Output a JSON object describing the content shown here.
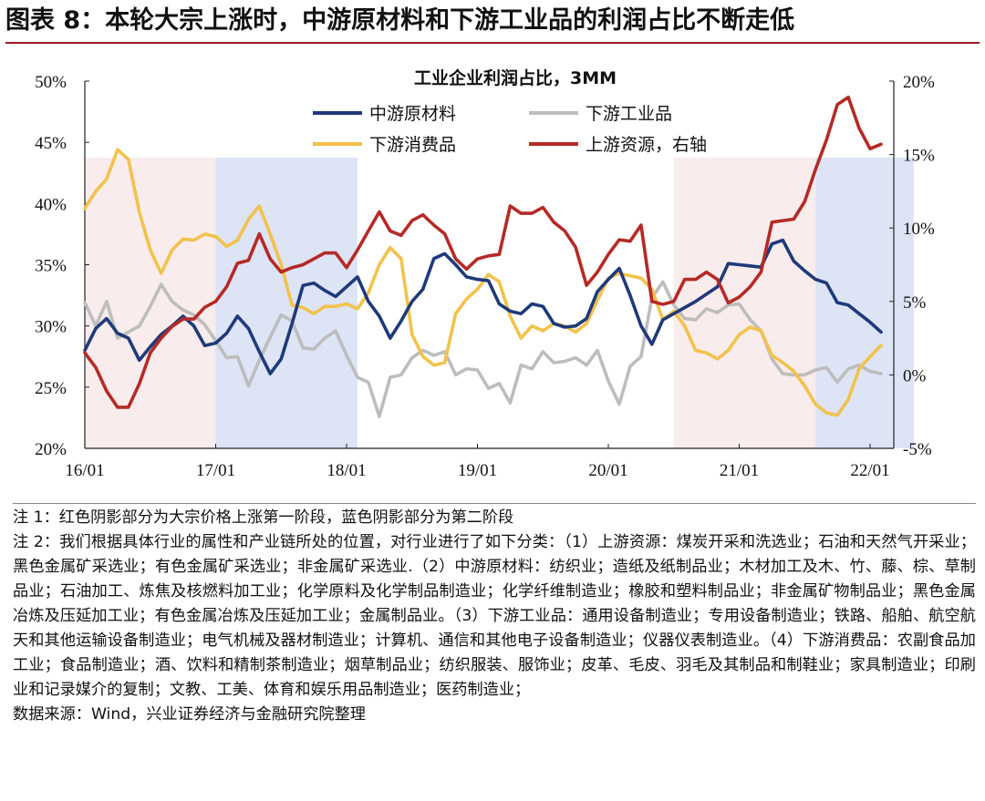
{
  "figure_title": "图表 8：本轮大宗上涨时，中游原材料和下游工业品的利润占比不断走低",
  "chart_data": {
    "type": "line",
    "title": "工业企业利润占比，3MM",
    "x_labels": [
      "16/01",
      "17/01",
      "18/01",
      "19/01",
      "20/01",
      "21/01",
      "22/01"
    ],
    "y_left": {
      "ticks": [
        "20%",
        "25%",
        "30%",
        "35%",
        "40%",
        "45%",
        "50%"
      ],
      "range": [
        20,
        50
      ]
    },
    "y_right": {
      "ticks": [
        "-5%",
        "0%",
        "5%",
        "10%",
        "15%",
        "20%"
      ],
      "range": [
        -5,
        20
      ]
    },
    "shaded_periods": [
      {
        "from_month": 0,
        "to_month": 12,
        "color": "#f8ecec"
      },
      {
        "from_month": 12,
        "to_month": 25,
        "color": "#dde4f6"
      },
      {
        "from_month": 54,
        "to_month": 67,
        "color": "#f8ecec"
      },
      {
        "from_month": 67,
        "to_month": 76,
        "color": "#dde4f6"
      }
    ],
    "series": [
      {
        "name": "中游原材料",
        "axis": "left",
        "color": "#1f3a7a",
        "values": [
          28.0,
          29.8,
          30.6,
          29.4,
          29.0,
          27.2,
          28.3,
          29.3,
          30.0,
          30.8,
          30.0,
          28.4,
          28.6,
          29.4,
          30.8,
          29.8,
          27.9,
          26.1,
          27.3,
          30.2,
          33.3,
          33.5,
          32.9,
          32.4,
          33.2,
          34.0,
          32.0,
          30.8,
          29.0,
          30.4,
          32.0,
          33.0,
          35.5,
          35.9,
          35.0,
          34.0,
          33.8,
          33.7,
          31.8,
          31.2,
          31.0,
          31.8,
          31.6,
          30.2,
          29.9,
          30.0,
          30.6,
          32.8,
          33.8,
          34.7,
          32.5,
          30.0,
          28.5,
          30.5,
          31.0,
          31.5,
          32.0,
          32.6,
          33.2,
          35.1,
          35.0,
          34.9,
          34.8,
          36.7,
          37.0,
          35.3,
          34.5,
          33.8,
          33.5,
          31.9,
          31.7,
          31.0,
          30.3,
          29.5
        ],
        "label": "中游原材料"
      },
      {
        "name": "下游工业品",
        "axis": "left",
        "color": "#bdbdbd",
        "values": [
          31.9,
          30.0,
          32.0,
          29.0,
          29.5,
          30.0,
          31.6,
          33.4,
          32.0,
          31.3,
          30.9,
          30.1,
          28.8,
          27.4,
          27.5,
          25.1,
          27.2,
          29.1,
          30.9,
          30.4,
          28.2,
          28.1,
          29.0,
          29.6,
          27.6,
          25.8,
          25.4,
          22.6,
          25.8,
          26.0,
          27.4,
          28.0,
          27.6,
          27.9,
          26.0,
          26.5,
          26.4,
          24.9,
          25.3,
          23.7,
          26.8,
          26.5,
          27.9,
          27.0,
          27.1,
          27.4,
          26.8,
          28.0,
          25.5,
          23.6,
          26.7,
          27.5,
          32.3,
          33.6,
          31.7,
          30.6,
          30.5,
          31.4,
          31.1,
          31.7,
          31.8,
          30.5,
          29.6,
          27.3,
          26.1,
          26.0,
          26.0,
          26.4,
          26.6,
          25.4,
          26.5,
          26.8,
          26.3,
          26.1
        ],
        "label": "下游工业品"
      },
      {
        "name": "下游消费品",
        "axis": "left",
        "color": "#f2c24c",
        "values": [
          39.6,
          41.0,
          42.0,
          44.4,
          43.6,
          39.3,
          36.2,
          34.3,
          36.2,
          37.1,
          37.0,
          37.5,
          37.3,
          36.5,
          37.0,
          38.7,
          39.8,
          37.5,
          35.0,
          31.7,
          31.5,
          31.0,
          31.6,
          31.6,
          31.8,
          31.4,
          32.7,
          35.0,
          36.4,
          35.5,
          29.3,
          27.5,
          26.8,
          27.0,
          31.0,
          32.2,
          33.0,
          34.2,
          33.6,
          30.8,
          29.0,
          30.0,
          29.6,
          30.2,
          30.0,
          29.5,
          30.2,
          32.1,
          33.9,
          34.3,
          34.1,
          33.9,
          33.0,
          30.5,
          31.2,
          30.0,
          28.0,
          27.8,
          27.3,
          28.0,
          29.3,
          29.9,
          29.6,
          27.6,
          27.0,
          26.3,
          25.1,
          23.6,
          22.9,
          22.7,
          24.0,
          26.5,
          27.5,
          28.4
        ],
        "label": "下游消费品"
      },
      {
        "name": "上游资源",
        "axis": "right",
        "color": "#b52a26",
        "values": [
          1.5,
          0.5,
          -1.1,
          -2.2,
          -2.2,
          -0.6,
          1.5,
          2.5,
          3.3,
          3.8,
          3.8,
          4.6,
          5.0,
          6.0,
          7.6,
          7.8,
          9.6,
          7.9,
          7.0,
          7.3,
          7.5,
          7.9,
          8.3,
          8.3,
          7.3,
          8.5,
          9.8,
          11.1,
          9.8,
          9.5,
          10.5,
          10.9,
          10.2,
          9.6,
          7.9,
          7.2,
          7.9,
          8.1,
          8.2,
          11.5,
          11.0,
          11.0,
          11.4,
          10.4,
          9.8,
          8.7,
          6.1,
          7.0,
          8.2,
          9.2,
          9.1,
          10.2,
          5.0,
          4.8,
          5.0,
          6.5,
          6.5,
          7.0,
          6.5,
          4.9,
          5.3,
          6.0,
          7.0,
          10.4,
          10.5,
          10.6,
          11.8,
          14.0,
          16.0,
          18.4,
          18.9,
          16.8,
          15.4,
          15.7
        ],
        "label": "上游资源，右轴"
      }
    ]
  },
  "notes": [
    "注 1：红色阴影部分为大宗价格上涨第一阶段，蓝色阴影部分为第二阶段",
    "注 2：我们根据具体行业的属性和产业链所处的位置，对行业进行了如下分类：（1）上游资源：煤炭开采和洗选业；石油和天然气开采业；黑色金属矿采选业；有色金属矿采选业；非金属矿采选业.（2）中游原材料：纺织业；造纸及纸制品业；木材加工及木、竹、藤、棕、草制品业；石油加工、炼焦及核燃料加工业；化学原料及化学制品制造业；化学纤维制造业；橡胶和塑料制品业；非金属矿物制品业；黑色金属冶炼及压延加工业；有色金属冶炼及压延加工业；金属制品业。（3）下游工业品：通用设备制造业；专用设备制造业；铁路、船舶、航空航天和其他运输设备制造业；电气机械及器材制造业；计算机、通信和其他电子设备制造业；仪器仪表制造业。（4）下游消费品：农副食品加工业；食品制造业；酒、饮料和精制茶制造业；烟草制品业；纺织服装、服饰业；皮革、毛皮、羽毛及其制品和制鞋业；家具制造业；印刷业和记录媒介的复制；文教、工美、体育和娱乐用品制造业；医药制造业；",
    "数据来源：Wind，兴业证券经济与金融研究院整理"
  ]
}
